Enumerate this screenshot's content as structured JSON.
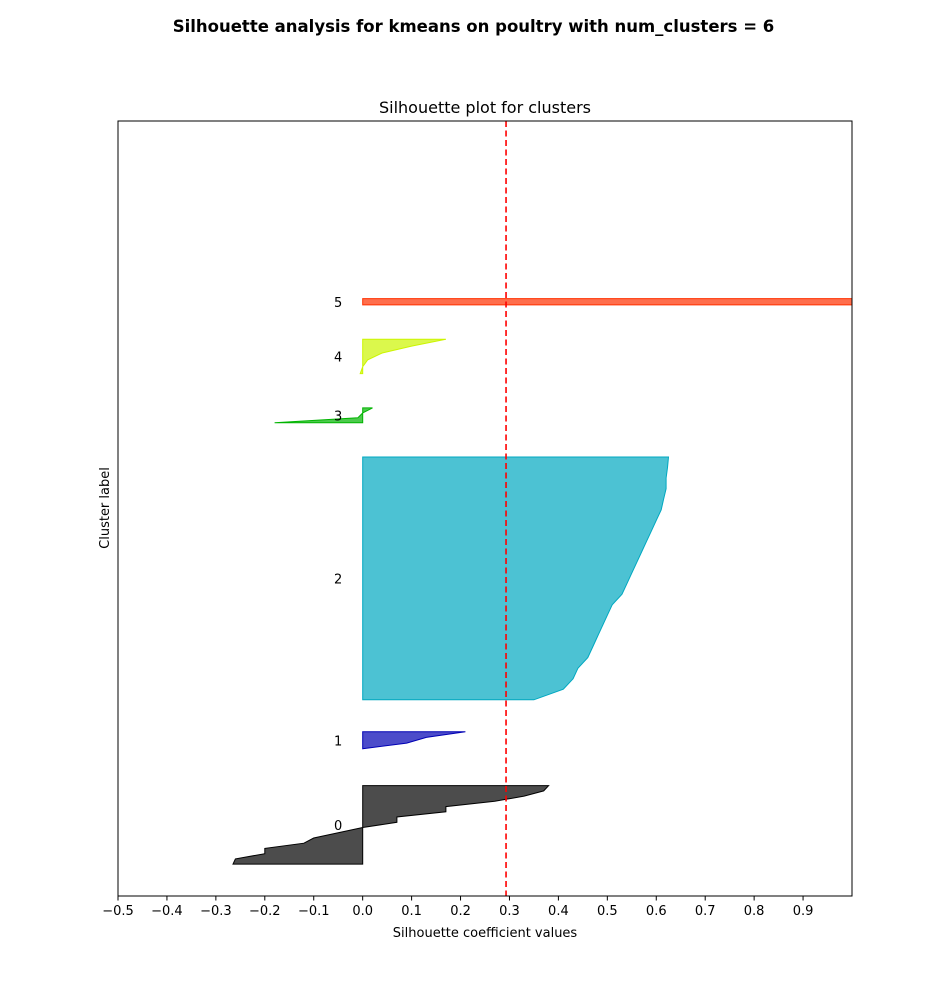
{
  "suptitle": "Silhouette analysis for kmeans on poultry with num_clusters = 6",
  "chart_data": {
    "type": "area",
    "title": "Silhouette plot for clusters",
    "xlabel": "Silhouette coefficient values",
    "ylabel": "Cluster label",
    "xlim": [
      -0.5,
      1.0
    ],
    "ylim": [
      0,
      158
    ],
    "xticks": [
      -0.5,
      -0.4,
      -0.3,
      -0.2,
      -0.1,
      0.0,
      0.1,
      0.2,
      0.3,
      0.4,
      0.5,
      0.6,
      0.7,
      0.8,
      0.9
    ],
    "xtick_labels": [
      "−0.5",
      "−0.4",
      "−0.3",
      "−0.2",
      "−0.1",
      "0.0",
      "0.1",
      "0.2",
      "0.3",
      "0.4",
      "0.5",
      "0.6",
      "0.7",
      "0.8",
      "0.9"
    ],
    "yticks": "none",
    "grid": false,
    "average_silhouette": 0.293,
    "average_line_color": "#ff0000",
    "clusters": [
      {
        "label": "0",
        "y_start": 6.5,
        "y_end": 22.5,
        "color": "#000000",
        "values": [
          -0.265,
          -0.26,
          -0.2,
          -0.2,
          -0.12,
          -0.1,
          -0.05,
          0.0,
          0.07,
          0.07,
          0.17,
          0.17,
          0.27,
          0.33,
          0.37,
          0.38
        ]
      },
      {
        "label": "1",
        "y_start": 30,
        "y_end": 33.5,
        "color": "#0000b4",
        "values": [
          0.0,
          0.09,
          0.13,
          0.21
        ]
      },
      {
        "label": "2",
        "y_start": 40,
        "y_end": 89.5,
        "color": "#00a8c0",
        "values": [
          0.35,
          0.41,
          0.43,
          0.44,
          0.46,
          0.47,
          0.48,
          0.49,
          0.5,
          0.51,
          0.53,
          0.54,
          0.55,
          0.56,
          0.57,
          0.58,
          0.59,
          0.6,
          0.61,
          0.615,
          0.62,
          0.62,
          0.623,
          0.625
        ]
      },
      {
        "label": "3",
        "y_start": 96.5,
        "y_end": 99.5,
        "color": "#00b400",
        "values": [
          -0.18,
          -0.01,
          0.0,
          0.02
        ]
      },
      {
        "label": "4",
        "y_start": 106.5,
        "y_end": 113.5,
        "color": "#ccf500",
        "values": [
          -0.005,
          0.0,
          0.01,
          0.04,
          0.1,
          0.17
        ]
      },
      {
        "label": "5",
        "y_start": 120.5,
        "y_end": 121.8,
        "color": "#ff3000",
        "values": [
          1.0,
          1.0
        ]
      }
    ]
  }
}
